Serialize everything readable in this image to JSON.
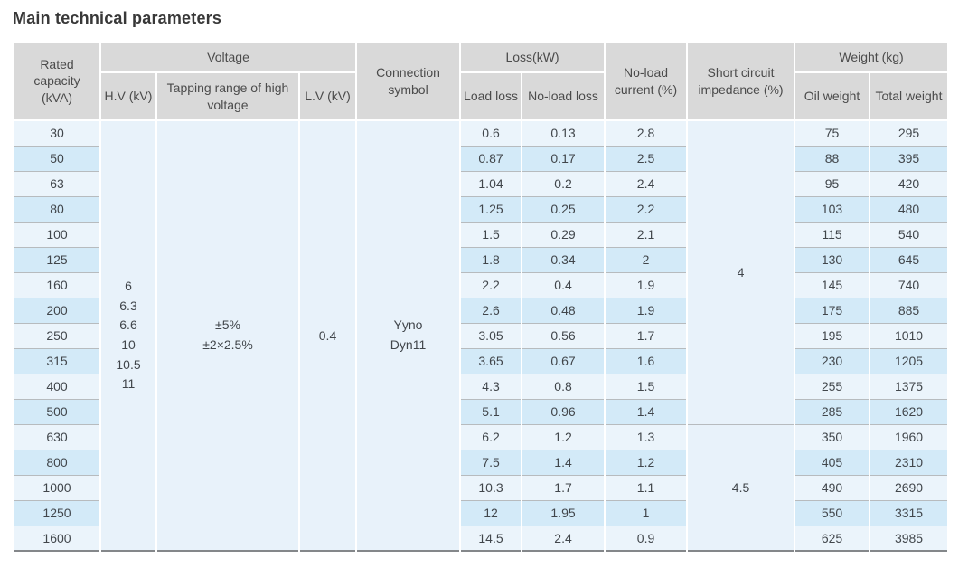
{
  "title": "Main technical parameters",
  "table": {
    "header": {
      "rated_capacity": "Rated capacity (kVA)",
      "voltage_group": "Voltage",
      "hv": "H.V (kV)",
      "tapping_range": "Tapping range of high voltage",
      "lv": "L.V (kV)",
      "connection_symbol": "Connection symbol",
      "loss_group": "Loss(kW)",
      "load_loss": "Load loss",
      "no_load_loss": "No-load loss",
      "no_load_current": "No-load current (%)",
      "short_circuit_impedance": "Short circuit impedance (%)",
      "weight_group": "Weight (kg)",
      "oil_weight": "Oil weight",
      "total_weight": "Total weight"
    },
    "merged": {
      "hv_values": [
        "6",
        "6.3",
        "6.6",
        "10",
        "10.5",
        "11"
      ],
      "tapping_range": [
        "±5%",
        "±2×2.5%"
      ],
      "lv_value": "0.4",
      "connection_symbol": [
        "Yyno",
        "Dyn11"
      ],
      "impedance_blocks": [
        {
          "value": "4",
          "rows": 12
        },
        {
          "value": "4.5",
          "rows": 5
        }
      ]
    },
    "rows": [
      {
        "capacity": "30",
        "load_loss": "0.6",
        "no_load_loss": "0.13",
        "no_load_current": "2.8",
        "oil_weight": "75",
        "total_weight": "295"
      },
      {
        "capacity": "50",
        "load_loss": "0.87",
        "no_load_loss": "0.17",
        "no_load_current": "2.5",
        "oil_weight": "88",
        "total_weight": "395"
      },
      {
        "capacity": "63",
        "load_loss": "1.04",
        "no_load_loss": "0.2",
        "no_load_current": "2.4",
        "oil_weight": "95",
        "total_weight": "420"
      },
      {
        "capacity": "80",
        "load_loss": "1.25",
        "no_load_loss": "0.25",
        "no_load_current": "2.2",
        "oil_weight": "103",
        "total_weight": "480"
      },
      {
        "capacity": "100",
        "load_loss": "1.5",
        "no_load_loss": "0.29",
        "no_load_current": "2.1",
        "oil_weight": "115",
        "total_weight": "540"
      },
      {
        "capacity": "125",
        "load_loss": "1.8",
        "no_load_loss": "0.34",
        "no_load_current": "2",
        "oil_weight": "130",
        "total_weight": "645"
      },
      {
        "capacity": "160",
        "load_loss": "2.2",
        "no_load_loss": "0.4",
        "no_load_current": "1.9",
        "oil_weight": "145",
        "total_weight": "740"
      },
      {
        "capacity": "200",
        "load_loss": "2.6",
        "no_load_loss": "0.48",
        "no_load_current": "1.9",
        "oil_weight": "175",
        "total_weight": "885"
      },
      {
        "capacity": "250",
        "load_loss": "3.05",
        "no_load_loss": "0.56",
        "no_load_current": "1.7",
        "oil_weight": "195",
        "total_weight": "1010"
      },
      {
        "capacity": "315",
        "load_loss": "3.65",
        "no_load_loss": "0.67",
        "no_load_current": "1.6",
        "oil_weight": "230",
        "total_weight": "1205"
      },
      {
        "capacity": "400",
        "load_loss": "4.3",
        "no_load_loss": "0.8",
        "no_load_current": "1.5",
        "oil_weight": "255",
        "total_weight": "1375"
      },
      {
        "capacity": "500",
        "load_loss": "5.1",
        "no_load_loss": "0.96",
        "no_load_current": "1.4",
        "oil_weight": "285",
        "total_weight": "1620"
      },
      {
        "capacity": "630",
        "load_loss": "6.2",
        "no_load_loss": "1.2",
        "no_load_current": "1.3",
        "oil_weight": "350",
        "total_weight": "1960"
      },
      {
        "capacity": "800",
        "load_loss": "7.5",
        "no_load_loss": "1.4",
        "no_load_current": "1.2",
        "oil_weight": "405",
        "total_weight": "2310"
      },
      {
        "capacity": "1000",
        "load_loss": "10.3",
        "no_load_loss": "1.7",
        "no_load_current": "1.1",
        "oil_weight": "490",
        "total_weight": "2690"
      },
      {
        "capacity": "1250",
        "load_loss": "12",
        "no_load_loss": "1.95",
        "no_load_current": "1",
        "oil_weight": "550",
        "total_weight": "3315"
      },
      {
        "capacity": "1600",
        "load_loss": "14.5",
        "no_load_loss": "2.4",
        "no_load_current": "0.9",
        "oil_weight": "625",
        "total_weight": "3985"
      }
    ]
  },
  "colors": {
    "header_bg": "#d9d9d9",
    "row_pale": "#ebf4fb",
    "row_dark": "#d3eaf8",
    "merged_bg": "#e8f2fa",
    "row_line": "#b7bbbe",
    "bottom_border": "#84878a",
    "text": "#41464b",
    "title_text": "#383838"
  }
}
